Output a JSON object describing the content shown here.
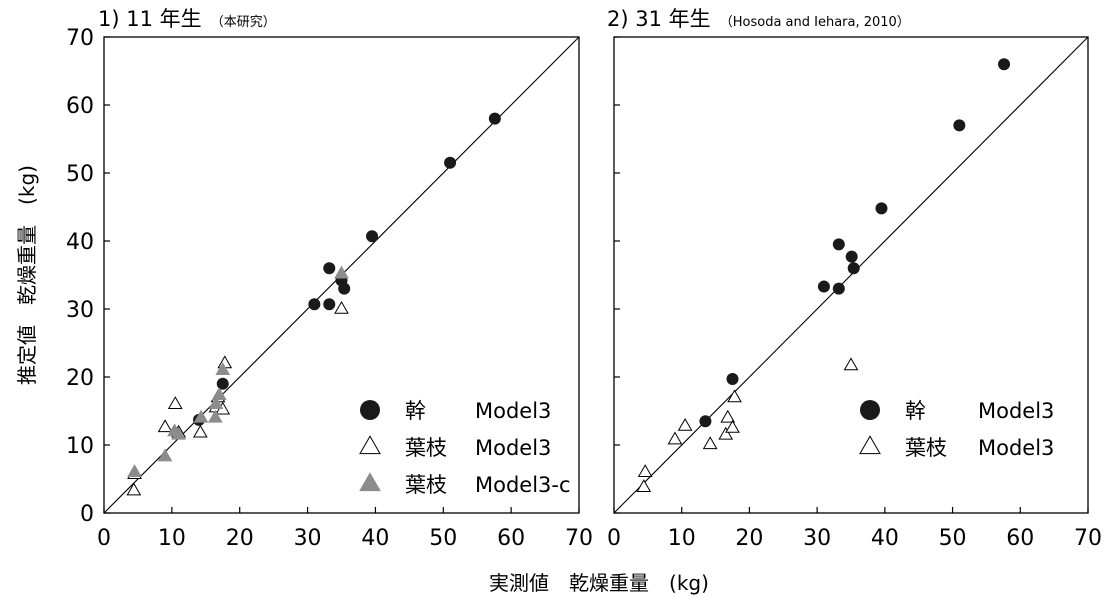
{
  "colors": {
    "stem": "#1a1a1a",
    "leaf_open": "#ffffff",
    "leaf_c": "#8c8c8c",
    "stroke": "#000000"
  },
  "y_axis_title": "推定値　乾燥重量　(kg)",
  "x_axis_title": "実測値　乾燥重量　(kg)",
  "chart_data": [
    {
      "type": "scatter",
      "title": "1)  11 年生",
      "subtitle": "（本研究）",
      "xlim": [
        0,
        70
      ],
      "ylim": [
        0,
        70
      ],
      "x_ticks": [
        "0",
        "10",
        "20",
        "30",
        "40",
        "50",
        "60",
        "70"
      ],
      "y_ticks": [
        "0",
        "10",
        "20",
        "30",
        "40",
        "50",
        "60",
        "70"
      ],
      "reference_line": "1:1",
      "grid": false,
      "legend_position": "bottom-right",
      "series": [
        {
          "name": "幹",
          "model": "Model3",
          "marker": "circle-filled",
          "points": [
            [
              14,
              13.7
            ],
            [
              17.5,
              19
            ],
            [
              31,
              30.7
            ],
            [
              33.2,
              30.7
            ],
            [
              33.2,
              36
            ],
            [
              35,
              34.2
            ],
            [
              35.4,
              33
            ],
            [
              39.5,
              40.7
            ],
            [
              51,
              51.5
            ],
            [
              57.6,
              58
            ]
          ]
        },
        {
          "name": "葉枝",
          "model": "Model3",
          "marker": "triangle-open",
          "points": [
            [
              4.4,
              3.3
            ],
            [
              4.5,
              5.7
            ],
            [
              9,
              12.6
            ],
            [
              10.5,
              16
            ],
            [
              11,
              11.8
            ],
            [
              14.2,
              11.8
            ],
            [
              16.5,
              15.5
            ],
            [
              16.8,
              17
            ],
            [
              17.5,
              15.2
            ],
            [
              17.8,
              22
            ],
            [
              35,
              30
            ]
          ]
        },
        {
          "name": "葉枝",
          "model": "Model3-c",
          "marker": "triangle-gray",
          "points": [
            [
              4.5,
              6
            ],
            [
              9,
              8.3
            ],
            [
              10.4,
              12
            ],
            [
              11,
              11.5
            ],
            [
              14.3,
              14
            ],
            [
              16.4,
              14
            ],
            [
              16.5,
              16
            ],
            [
              17,
              17.3
            ],
            [
              17.5,
              21
            ],
            [
              35,
              35.2
            ]
          ]
        }
      ]
    },
    {
      "type": "scatter",
      "title": "2)  31 年生",
      "subtitle": "（Hosoda and Iehara, 2010）",
      "xlim": [
        0,
        70
      ],
      "ylim": [
        0,
        70
      ],
      "x_ticks": [
        "0",
        "10",
        "20",
        "30",
        "40",
        "50",
        "60",
        "70"
      ],
      "reference_line": "1:1",
      "grid": false,
      "legend_position": "bottom-right",
      "series": [
        {
          "name": "幹",
          "model": "Model3",
          "marker": "circle-filled",
          "points": [
            [
              13.5,
              13.5
            ],
            [
              17.5,
              19.7
            ],
            [
              31,
              33.3
            ],
            [
              33.2,
              33
            ],
            [
              33.2,
              39.5
            ],
            [
              35.1,
              37.7
            ],
            [
              35.4,
              36
            ],
            [
              39.5,
              44.8
            ],
            [
              51,
              57
            ],
            [
              57.6,
              66
            ]
          ]
        },
        {
          "name": "葉枝",
          "model": "Model3",
          "marker": "triangle-open",
          "points": [
            [
              4.4,
              3.8
            ],
            [
              4.6,
              6
            ],
            [
              9,
              10.8
            ],
            [
              10.5,
              12.8
            ],
            [
              14.2,
              10.1
            ],
            [
              16.5,
              11.5
            ],
            [
              16.8,
              14
            ],
            [
              17.5,
              12.5
            ],
            [
              17.8,
              17
            ],
            [
              35,
              21.7
            ]
          ]
        }
      ]
    }
  ]
}
